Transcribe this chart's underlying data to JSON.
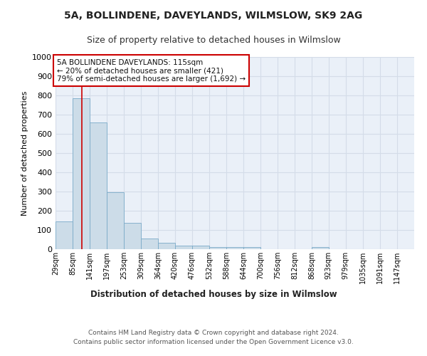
{
  "title1": "5A, BOLLINDENE, DAVEYLANDS, WILMSLOW, SK9 2AG",
  "title2": "Size of property relative to detached houses in Wilmslow",
  "xlabel": "Distribution of detached houses by size in Wilmslow",
  "ylabel": "Number of detached properties",
  "bar_labels": [
    "29sqm",
    "85sqm",
    "141sqm",
    "197sqm",
    "253sqm",
    "309sqm",
    "364sqm",
    "420sqm",
    "476sqm",
    "532sqm",
    "588sqm",
    "644sqm",
    "700sqm",
    "756sqm",
    "812sqm",
    "868sqm",
    "923sqm",
    "979sqm",
    "1035sqm",
    "1091sqm",
    "1147sqm"
  ],
  "bar_values": [
    145,
    785,
    660,
    295,
    138,
    57,
    33,
    20,
    20,
    12,
    10,
    10,
    0,
    0,
    0,
    10,
    0,
    0,
    0,
    0,
    0
  ],
  "bar_color": "#ccdce8",
  "bar_edge_color": "#7aaac8",
  "grid_color": "#d4dce8",
  "background_color": "#eaf0f8",
  "red_line_x": 115,
  "bin_edges": [
    29,
    85,
    141,
    197,
    253,
    309,
    364,
    420,
    476,
    532,
    588,
    644,
    700,
    756,
    812,
    868,
    923,
    979,
    1035,
    1091,
    1147,
    1203
  ],
  "annotation_text": "5A BOLLINDENE DAVEYLANDS: 115sqm\n← 20% of detached houses are smaller (421)\n79% of semi-detached houses are larger (1,692) →",
  "annotation_box_color": "#ffffff",
  "annotation_box_edge_color": "#cc0000",
  "ylim": [
    0,
    1000
  ],
  "yticks": [
    0,
    100,
    200,
    300,
    400,
    500,
    600,
    700,
    800,
    900,
    1000
  ],
  "footer_line1": "Contains HM Land Registry data © Crown copyright and database right 2024.",
  "footer_line2": "Contains public sector information licensed under the Open Government Licence v3.0."
}
